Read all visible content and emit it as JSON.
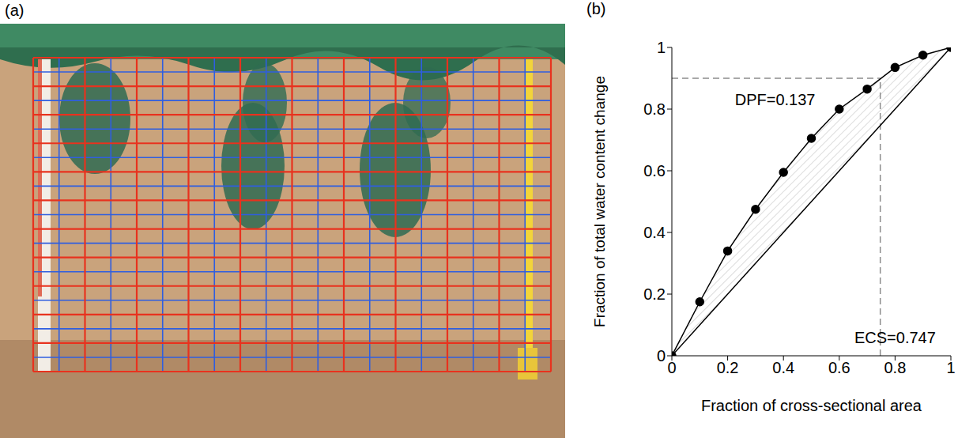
{
  "panel_a": {
    "label": "(a)"
  },
  "chart_data": {
    "type": "line",
    "panel_label": "(b)",
    "x_label": "Fraction of cross-sectional area",
    "y_label": "Fraction of total water content change",
    "x": [
      0,
      0.1,
      0.2,
      0.3,
      0.4,
      0.5,
      0.6,
      0.7,
      0.8,
      0.9,
      1
    ],
    "series": [
      {
        "values": [
          0,
          0.175,
          0.34,
          0.475,
          0.595,
          0.705,
          0.8,
          0.865,
          0.935,
          0.975,
          1
        ],
        "color": "#000000",
        "marker": "circle",
        "line_style": "solid"
      },
      {
        "values": [
          0,
          0.1,
          0.2,
          0.3,
          0.4,
          0.5,
          0.6,
          0.7,
          0.8,
          0.9,
          1
        ],
        "color": "#000000",
        "marker": "none",
        "line_style": "solid"
      }
    ],
    "ecs_lines": {
      "x": 0.747,
      "y": 0.9,
      "color": "#8c8c8c",
      "line_style": "dashed"
    },
    "annotations": [
      {
        "text": "DPF=0.137"
      },
      {
        "text": "ECS=0.747"
      }
    ],
    "xlim": [
      0,
      1
    ],
    "ylim": [
      0,
      1
    ],
    "xticks": [
      0,
      0.2,
      0.4,
      0.6,
      0.8,
      1
    ],
    "yticks": [
      0,
      0.2,
      0.4,
      0.6,
      0.8,
      1
    ],
    "grid": false
  }
}
